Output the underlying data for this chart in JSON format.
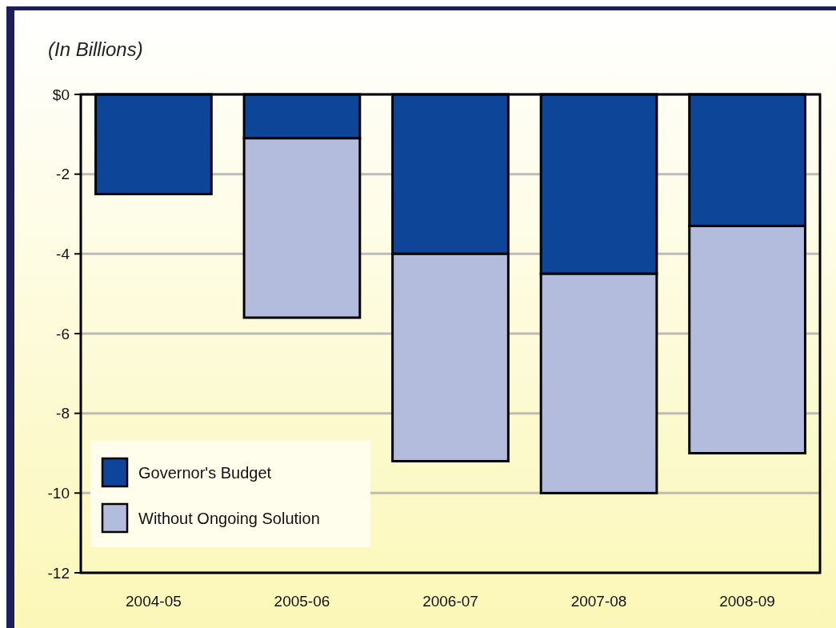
{
  "chart_data": {
    "type": "bar",
    "ylabel": "(In Billions)",
    "categories": [
      "2004-05",
      "2005-06",
      "2006-07",
      "2007-08",
      "2008-09"
    ],
    "stacked": true,
    "series": [
      {
        "name": "Governor's Budget",
        "color": "#0d4599",
        "values": [
          -2.5,
          -1.1,
          -4.0,
          -4.5,
          -3.3
        ]
      },
      {
        "name": "Without Ongoing Solution",
        "color": "#b3bcdc",
        "values": [
          null,
          -4.5,
          -5.2,
          -5.5,
          -5.7
        ]
      }
    ],
    "ylim": [
      -12,
      0
    ],
    "yticks": [
      {
        "value": 0,
        "label": "$0"
      },
      -2,
      -4,
      -6,
      -8,
      -10,
      -12
    ],
    "grid": "y",
    "legend": "bottom left"
  }
}
